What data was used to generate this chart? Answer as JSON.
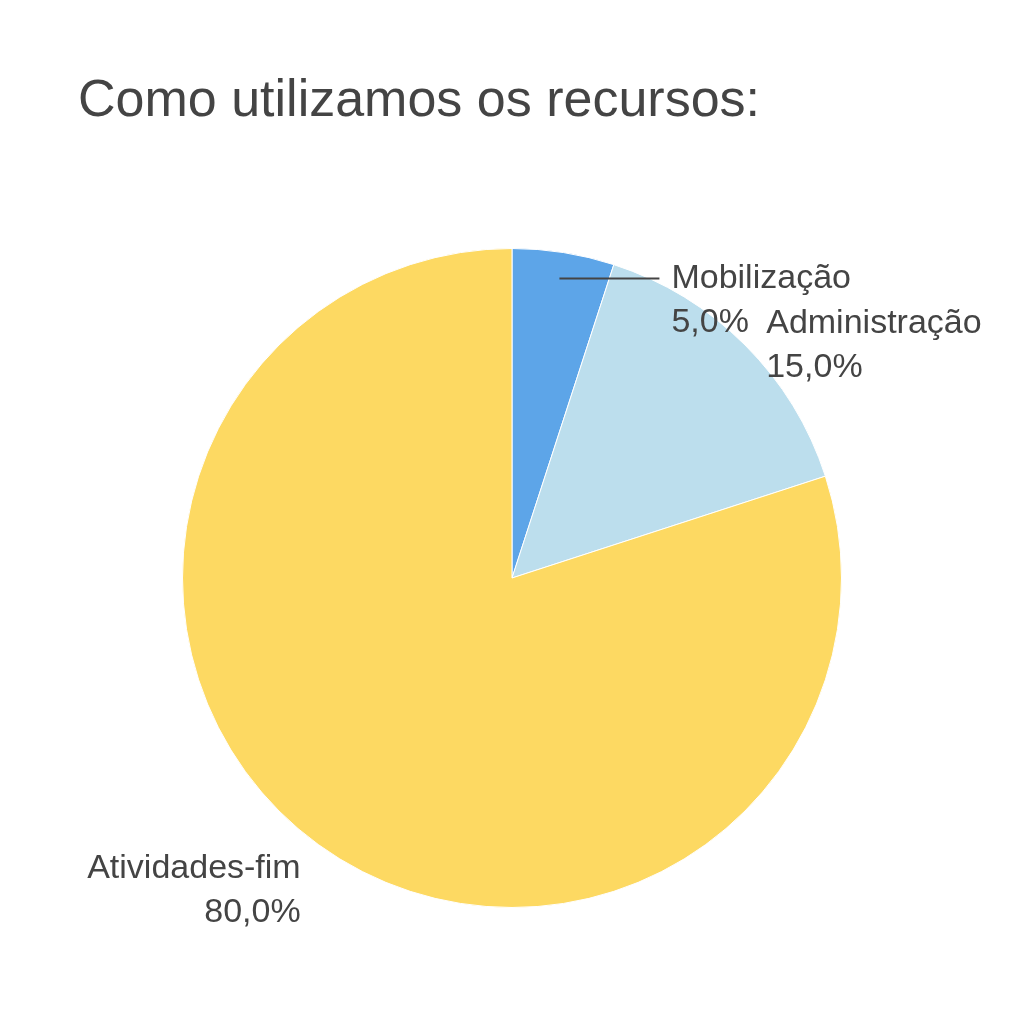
{
  "chart_data": {
    "type": "pie",
    "title": "Como utilizamos os recursos:",
    "categories": [
      "Mobilização",
      "Administração",
      "Atividades-fim"
    ],
    "values": [
      5,
      15,
      80
    ],
    "colors": [
      "#5da5e8",
      "#bcdeed",
      "#fdd962"
    ],
    "value_labels": [
      "5,0%",
      "15,0%",
      "80,0%"
    ],
    "legend": false
  }
}
